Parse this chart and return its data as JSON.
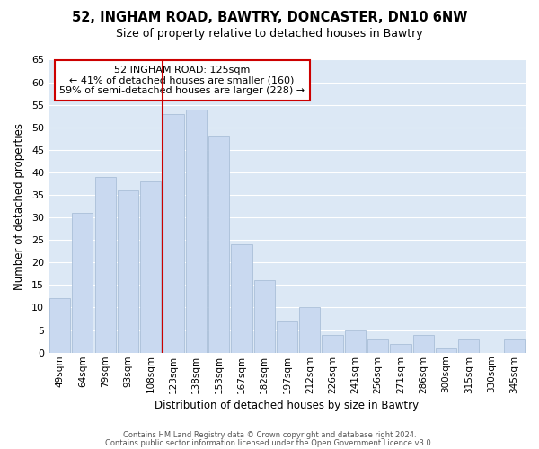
{
  "title": "52, INGHAM ROAD, BAWTRY, DONCASTER, DN10 6NW",
  "subtitle": "Size of property relative to detached houses in Bawtry",
  "xlabel": "Distribution of detached houses by size in Bawtry",
  "ylabel": "Number of detached properties",
  "categories": [
    "49sqm",
    "64sqm",
    "79sqm",
    "93sqm",
    "108sqm",
    "123sqm",
    "138sqm",
    "153sqm",
    "167sqm",
    "182sqm",
    "197sqm",
    "212sqm",
    "226sqm",
    "241sqm",
    "256sqm",
    "271sqm",
    "286sqm",
    "300sqm",
    "315sqm",
    "330sqm",
    "345sqm"
  ],
  "values": [
    12,
    31,
    39,
    36,
    38,
    53,
    54,
    48,
    24,
    16,
    7,
    10,
    4,
    5,
    3,
    2,
    4,
    1,
    3,
    0,
    3
  ],
  "bar_color": "#c9d9f0",
  "bar_edge_color": "#aabfd8",
  "highlight_index": 5,
  "highlight_line_color": "#cc0000",
  "ylim": [
    0,
    65
  ],
  "yticks": [
    0,
    5,
    10,
    15,
    20,
    25,
    30,
    35,
    40,
    45,
    50,
    55,
    60,
    65
  ],
  "annotation_title": "52 INGHAM ROAD: 125sqm",
  "annotation_line1": "← 41% of detached houses are smaller (160)",
  "annotation_line2": "59% of semi-detached houses are larger (228) →",
  "annotation_box_color": "#ffffff",
  "annotation_box_edge": "#cc0000",
  "footer1": "Contains HM Land Registry data © Crown copyright and database right 2024.",
  "footer2": "Contains public sector information licensed under the Open Government Licence v3.0.",
  "background_color": "#ffffff",
  "grid_color": "#dce8f5"
}
